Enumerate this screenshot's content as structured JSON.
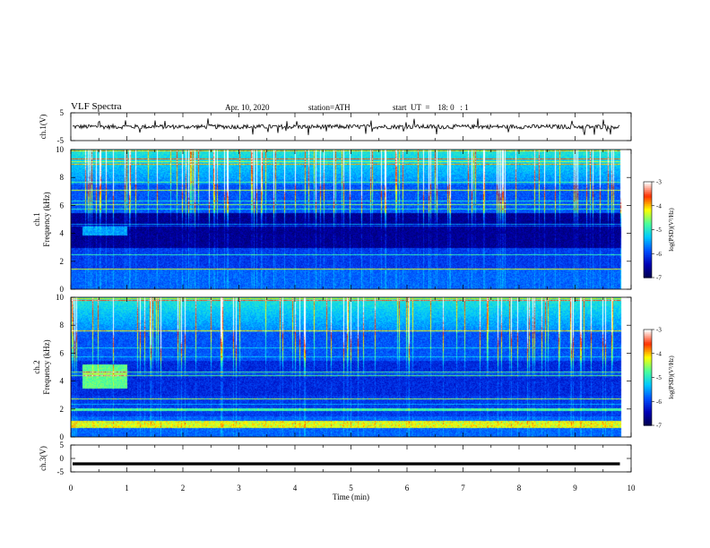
{
  "header": {
    "title": "VLF  Spectra",
    "date": "Apr. 10, 2020",
    "station": "station=ATH",
    "start": "start  UT  =    18: 0   : 1"
  },
  "chart_data": [
    {
      "type": "line",
      "panel": "ch1-waveform",
      "ylabel": "ch.1(V)",
      "ylim": [
        -5,
        5
      ],
      "yticks": [
        "5",
        "-5"
      ],
      "xlim": [
        0,
        10
      ],
      "description_values": {
        "baseline_V": 0,
        "typical_amplitude_V": 0.8,
        "spike_amplitude_V": 3
      }
    },
    {
      "type": "heatmap",
      "panel": "ch1-spectrogram",
      "ylabel": "ch.1\nFrequency  (kHz)",
      "ylim": [
        0,
        10
      ],
      "yticks": [
        "0",
        "2",
        "4",
        "6",
        "8",
        "10"
      ],
      "xlim": [
        0,
        10
      ],
      "colorbar": {
        "label": "log(PSD)(V²/Hz)",
        "range": [
          -7,
          -3
        ],
        "ticks": [
          "-3",
          "-4",
          "-5",
          "-6",
          "-7"
        ]
      },
      "features": {
        "quiet_band_kHz": [
          3,
          5
        ],
        "enhanced_emission_kHz": [
          3.9,
          4.5
        ],
        "enhanced_emission_min": [
          0.2,
          1.0
        ],
        "data_end_min": 9.8
      }
    },
    {
      "type": "heatmap",
      "panel": "ch2-spectrogram",
      "ylabel": "ch.2\nFrequency  (kHz)",
      "ylim": [
        0,
        10
      ],
      "yticks": [
        "0",
        "2",
        "4",
        "6",
        "8",
        "10"
      ],
      "xlim": [
        0,
        10
      ],
      "colorbar": {
        "label": "log(PSD)(V²/Hz)",
        "range": [
          -7,
          -3
        ],
        "ticks": [
          "-3",
          "-4",
          "-5",
          "-6",
          "-7"
        ]
      },
      "features": {
        "strong_band_kHz": [
          0.7,
          1.2
        ],
        "enhanced_emission_kHz": [
          3.5,
          5.2
        ],
        "enhanced_emission_min": [
          0.2,
          1.0
        ],
        "data_end_min": 9.8
      }
    },
    {
      "type": "line",
      "panel": "ch3-waveform",
      "ylabel": "ch.3(V)",
      "ylim": [
        -5,
        5
      ],
      "yticks": [
        "5",
        "0",
        "-5"
      ],
      "xlim": [
        0,
        10
      ],
      "description_values": {
        "level_V": -2
      }
    }
  ],
  "xaxis": {
    "label": "Time  (min)",
    "ticks": [
      "0",
      "1",
      "2",
      "3",
      "4",
      "5",
      "6",
      "7",
      "8",
      "9",
      "10"
    ]
  },
  "colors": {
    "colormap": [
      "#00004a",
      "#0000b4",
      "#0050ff",
      "#00c8ff",
      "#4cff9a",
      "#ffff00",
      "#ff3000",
      "#ffffff"
    ]
  }
}
